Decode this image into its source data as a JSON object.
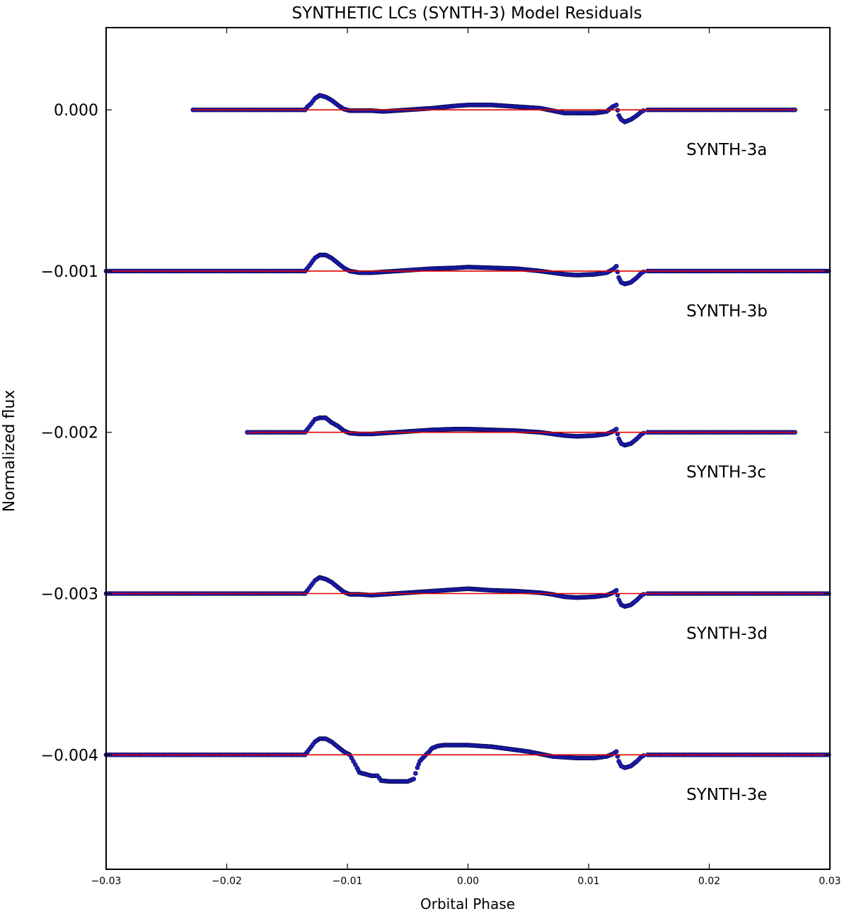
{
  "chart_data": {
    "type": "scatter",
    "title": "SYNTHETIC LCs (SYNTH-3) Model Residuals",
    "xlabel": "Orbital Phase",
    "ylabel": "Normalized flux",
    "xlim": [
      -0.03,
      0.03
    ],
    "ylim": [
      -0.00471,
      0.00051
    ],
    "xticks": [
      -0.03,
      -0.02,
      -0.01,
      0.0,
      0.01,
      0.02,
      0.03
    ],
    "xtick_labels": [
      "−0.03",
      "−0.02",
      "−0.01",
      "0.00",
      "0.01",
      "0.02",
      "0.03"
    ],
    "yticks": [
      0.0,
      -0.001,
      -0.002,
      -0.003,
      -0.004
    ],
    "ytick_labels": [
      "0.000",
      "−0.001",
      "−0.002",
      "−0.003",
      "−0.004"
    ],
    "grid": false,
    "legend": "none",
    "colors": {
      "points": "#1f1fc8",
      "point_edge": "#000033",
      "model_line": "#e00000",
      "axes": "#000000"
    },
    "series": [
      {
        "name": "SYNTH-3a",
        "offset": 0.0,
        "phase_range": [
          -0.0228,
          0.0272
        ],
        "dip": null,
        "label_pos": [
          0.0181,
          -0.000245
        ],
        "points": [
          [
            -0.0135,
            0.0
          ],
          [
            -0.0133,
            2e-05
          ],
          [
            -0.013,
            4e-05
          ],
          [
            -0.0127,
            7e-05
          ],
          [
            -0.0123,
            9e-05
          ],
          [
            -0.0118,
            8e-05
          ],
          [
            -0.0113,
            6e-05
          ],
          [
            -0.0108,
            3e-05
          ],
          [
            -0.0103,
            5e-06
          ],
          [
            -0.0098,
            -5e-06
          ],
          [
            -0.009,
            -5e-06
          ],
          [
            -0.008,
            -5e-06
          ],
          [
            -0.007,
            -1e-05
          ],
          [
            -0.006,
            -5e-06
          ],
          [
            -0.005,
            0.0
          ],
          [
            -0.003,
            1e-05
          ],
          [
            -0.001,
            2.5e-05
          ],
          [
            0.0,
            3e-05
          ],
          [
            0.002,
            3e-05
          ],
          [
            0.004,
            2e-05
          ],
          [
            0.006,
            1e-05
          ],
          [
            0.007,
            -5e-06
          ],
          [
            0.008,
            -2e-05
          ],
          [
            0.009,
            -2e-05
          ],
          [
            0.0105,
            -2e-05
          ],
          [
            0.0115,
            -1e-05
          ],
          [
            0.012,
            2e-05
          ],
          [
            0.0123,
            3e-05
          ],
          [
            0.0125,
            -3.5e-05
          ],
          [
            0.0127,
            -6e-05
          ],
          [
            0.013,
            -7.5e-05
          ],
          [
            0.0135,
            -6e-05
          ],
          [
            0.014,
            -3.5e-05
          ],
          [
            0.0144,
            -1e-05
          ],
          [
            0.0147,
            0.0
          ]
        ]
      },
      {
        "name": "SYNTH-3b",
        "offset": -0.001,
        "phase_range": [
          -0.03,
          0.03
        ],
        "dip": null,
        "label_pos": [
          0.0181,
          -0.001245
        ],
        "points": [
          [
            -0.0135,
            0.0
          ],
          [
            -0.0133,
            2e-05
          ],
          [
            -0.013,
            5e-05
          ],
          [
            -0.0127,
            8e-05
          ],
          [
            -0.0123,
            0.0001
          ],
          [
            -0.0118,
            0.0001
          ],
          [
            -0.0113,
            8e-05
          ],
          [
            -0.0108,
            5e-05
          ],
          [
            -0.0103,
            2e-05
          ],
          [
            -0.0098,
            0.0
          ],
          [
            -0.009,
            -1e-05
          ],
          [
            -0.008,
            -1e-05
          ],
          [
            -0.007,
            -5e-06
          ],
          [
            -0.006,
            0.0
          ],
          [
            -0.005,
            5e-06
          ],
          [
            -0.003,
            1.5e-05
          ],
          [
            -0.001,
            2e-05
          ],
          [
            0.0,
            2.5e-05
          ],
          [
            0.002,
            2e-05
          ],
          [
            0.004,
            1.5e-05
          ],
          [
            0.006,
            0.0
          ],
          [
            0.007,
            -1e-05
          ],
          [
            0.008,
            -2e-05
          ],
          [
            0.009,
            -2.5e-05
          ],
          [
            0.0105,
            -2e-05
          ],
          [
            0.0115,
            -1e-05
          ],
          [
            0.012,
            1e-05
          ],
          [
            0.0123,
            3e-05
          ],
          [
            0.0125,
            -4e-05
          ],
          [
            0.0127,
            -7e-05
          ],
          [
            0.013,
            -8e-05
          ],
          [
            0.0135,
            -7e-05
          ],
          [
            0.014,
            -4e-05
          ],
          [
            0.0144,
            -1e-05
          ],
          [
            0.0147,
            0.0
          ]
        ]
      },
      {
        "name": "SYNTH-3c",
        "offset": -0.002,
        "phase_range": [
          -0.0183,
          0.0272
        ],
        "dip": null,
        "label_pos": [
          0.0181,
          -0.002245
        ],
        "points": [
          [
            -0.0135,
            0.0
          ],
          [
            -0.0133,
            2e-05
          ],
          [
            -0.013,
            5e-05
          ],
          [
            -0.0127,
            8e-05
          ],
          [
            -0.0123,
            9e-05
          ],
          [
            -0.0118,
            9e-05
          ],
          [
            -0.0113,
            6e-05
          ],
          [
            -0.0108,
            4e-05
          ],
          [
            -0.0103,
            1e-05
          ],
          [
            -0.0098,
            -5e-06
          ],
          [
            -0.009,
            -1e-05
          ],
          [
            -0.008,
            -1e-05
          ],
          [
            -0.007,
            -5e-06
          ],
          [
            -0.006,
            0.0
          ],
          [
            -0.005,
            5e-06
          ],
          [
            -0.003,
            1.5e-05
          ],
          [
            -0.001,
            2e-05
          ],
          [
            0.0,
            2e-05
          ],
          [
            0.002,
            1.5e-05
          ],
          [
            0.004,
            1e-05
          ],
          [
            0.006,
            0.0
          ],
          [
            0.007,
            -1e-05
          ],
          [
            0.008,
            -2e-05
          ],
          [
            0.009,
            -2.5e-05
          ],
          [
            0.0105,
            -2e-05
          ],
          [
            0.0115,
            -1e-05
          ],
          [
            0.012,
            5e-06
          ],
          [
            0.0123,
            2e-05
          ],
          [
            0.0125,
            -4e-05
          ],
          [
            0.0127,
            -7e-05
          ],
          [
            0.013,
            -8e-05
          ],
          [
            0.0135,
            -7e-05
          ],
          [
            0.014,
            -4e-05
          ],
          [
            0.0144,
            -1e-05
          ],
          [
            0.0147,
            0.0
          ]
        ]
      },
      {
        "name": "SYNTH-3d",
        "offset": -0.003,
        "phase_range": [
          -0.03,
          0.03
        ],
        "dip": null,
        "label_pos": [
          0.0181,
          -0.003245
        ],
        "points": [
          [
            -0.0135,
            0.0
          ],
          [
            -0.0133,
            2e-05
          ],
          [
            -0.013,
            5e-05
          ],
          [
            -0.0127,
            8e-05
          ],
          [
            -0.0123,
            0.0001
          ],
          [
            -0.0118,
            9e-05
          ],
          [
            -0.0113,
            7e-05
          ],
          [
            -0.0108,
            4e-05
          ],
          [
            -0.0103,
            1e-05
          ],
          [
            -0.0098,
            -5e-06
          ],
          [
            -0.009,
            -5e-06
          ],
          [
            -0.008,
            -1e-05
          ],
          [
            -0.007,
            -5e-06
          ],
          [
            -0.006,
            0.0
          ],
          [
            -0.005,
            5e-06
          ],
          [
            -0.003,
            1.5e-05
          ],
          [
            -0.001,
            2.5e-05
          ],
          [
            0.0,
            3e-05
          ],
          [
            0.002,
            2e-05
          ],
          [
            0.004,
            1.5e-05
          ],
          [
            0.006,
            5e-06
          ],
          [
            0.007,
            -5e-06
          ],
          [
            0.008,
            -2e-05
          ],
          [
            0.009,
            -2.5e-05
          ],
          [
            0.0105,
            -2e-05
          ],
          [
            0.0115,
            -1e-05
          ],
          [
            0.012,
            5e-06
          ],
          [
            0.0123,
            2e-05
          ],
          [
            0.0125,
            -4e-05
          ],
          [
            0.0127,
            -7e-05
          ],
          [
            0.013,
            -8e-05
          ],
          [
            0.0135,
            -7e-05
          ],
          [
            0.014,
            -4e-05
          ],
          [
            0.0144,
            -1e-05
          ],
          [
            0.0147,
            0.0
          ]
        ]
      },
      {
        "name": "SYNTH-3e",
        "offset": -0.004,
        "phase_range": [
          -0.03,
          0.03
        ],
        "dip": [
          -0.0093,
          -0.0044,
          -0.000165
        ],
        "label_pos": [
          0.0181,
          -0.004245
        ],
        "points": [
          [
            -0.0135,
            0.0
          ],
          [
            -0.0133,
            2e-05
          ],
          [
            -0.013,
            5e-05
          ],
          [
            -0.0127,
            8e-05
          ],
          [
            -0.0123,
            0.0001
          ],
          [
            -0.0118,
            0.0001
          ],
          [
            -0.0113,
            8e-05
          ],
          [
            -0.0108,
            5e-05
          ],
          [
            -0.0103,
            2e-05
          ],
          [
            -0.0098,
            0.0
          ],
          [
            -0.0095,
            -4e-05
          ],
          [
            -0.0092,
            -8e-05
          ],
          [
            -0.009,
            -0.00011
          ],
          [
            -0.0085,
            -0.00012
          ],
          [
            -0.008,
            -0.00013
          ],
          [
            -0.0075,
            -0.00013
          ],
          [
            -0.0072,
            -0.00016
          ],
          [
            -0.0065,
            -0.000165
          ],
          [
            -0.006,
            -0.000165
          ],
          [
            -0.0055,
            -0.000165
          ],
          [
            -0.005,
            -0.000165
          ],
          [
            -0.0045,
            -0.00015
          ],
          [
            -0.0042,
            -8e-05
          ],
          [
            -0.004,
            -4e-05
          ],
          [
            -0.0035,
            0.0
          ],
          [
            -0.0032,
            2e-05
          ],
          [
            -0.003,
            4e-05
          ],
          [
            -0.0025,
            5.5e-05
          ],
          [
            -0.002,
            6e-05
          ],
          [
            -0.001,
            6e-05
          ],
          [
            0.0,
            6e-05
          ],
          [
            0.001,
            5.5e-05
          ],
          [
            0.002,
            5e-05
          ],
          [
            0.003,
            4e-05
          ],
          [
            0.004,
            3e-05
          ],
          [
            0.005,
            2e-05
          ],
          [
            0.006,
            5e-06
          ],
          [
            0.007,
            -1e-05
          ],
          [
            0.008,
            -1.5e-05
          ],
          [
            0.009,
            -2e-05
          ],
          [
            0.0105,
            -2e-05
          ],
          [
            0.0115,
            -1e-05
          ],
          [
            0.012,
            5e-06
          ],
          [
            0.0123,
            2e-05
          ],
          [
            0.0125,
            -4e-05
          ],
          [
            0.0127,
            -7e-05
          ],
          [
            0.013,
            -8e-05
          ],
          [
            0.0135,
            -7e-05
          ],
          [
            0.014,
            -4e-05
          ],
          [
            0.0144,
            -1e-05
          ],
          [
            0.0147,
            0.0
          ]
        ]
      }
    ]
  }
}
